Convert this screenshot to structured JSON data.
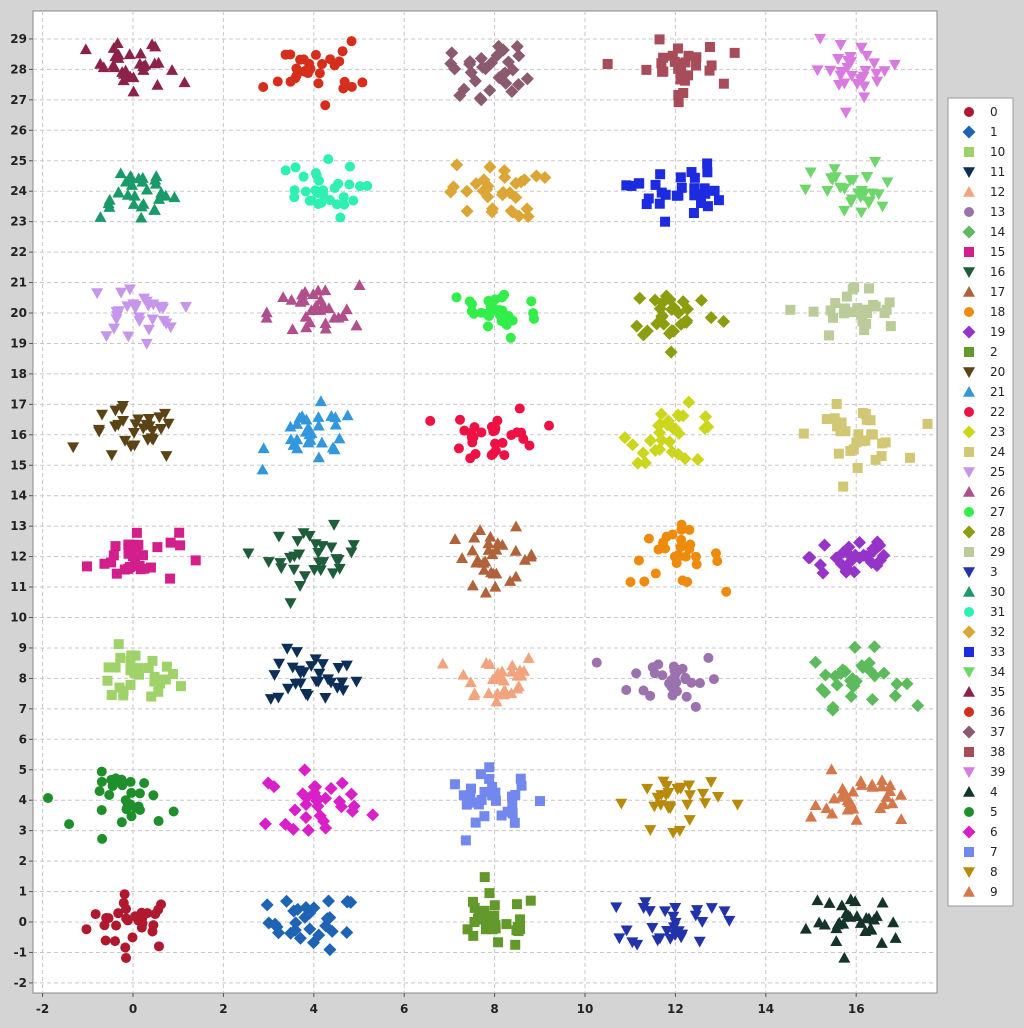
{
  "chart_data": {
    "type": "scatter",
    "title": "",
    "xlabel": "",
    "ylabel": "",
    "xlim": [
      -2.2,
      17.7
    ],
    "ylim": [
      -2.3,
      29.8
    ],
    "x_ticks": [
      -2,
      0,
      2,
      4,
      6,
      8,
      10,
      12,
      14,
      16
    ],
    "y_ticks": [
      -2,
      -1,
      0,
      1,
      2,
      3,
      4,
      5,
      6,
      7,
      8,
      9,
      10,
      11,
      12,
      13,
      14,
      15,
      16,
      17,
      18,
      19,
      20,
      21,
      22,
      23,
      24,
      25,
      26,
      27,
      28,
      29
    ],
    "grid": true,
    "legend_position": "right",
    "series": [
      {
        "name": "0",
        "center": [
          0,
          0
        ],
        "marker": "circle",
        "color": "#b0182e"
      },
      {
        "name": "1",
        "center": [
          4,
          0
        ],
        "marker": "diamond",
        "color": "#1f64b4"
      },
      {
        "name": "10",
        "center": [
          0,
          8
        ],
        "marker": "square",
        "color": "#9fd36a"
      },
      {
        "name": "11",
        "center": [
          4,
          8
        ],
        "marker": "triangle-down",
        "color": "#0d2e57"
      },
      {
        "name": "12",
        "center": [
          8,
          8
        ],
        "marker": "triangle-up",
        "color": "#f2a47f"
      },
      {
        "name": "13",
        "center": [
          12,
          8
        ],
        "marker": "circle",
        "color": "#9b72ad"
      },
      {
        "name": "14",
        "center": [
          16,
          8
        ],
        "marker": "diamond",
        "color": "#5dbb5d"
      },
      {
        "name": "15",
        "center": [
          0,
          12
        ],
        "marker": "square",
        "color": "#d21f8c"
      },
      {
        "name": "16",
        "center": [
          4,
          12
        ],
        "marker": "triangle-down",
        "color": "#1f5c3a"
      },
      {
        "name": "17",
        "center": [
          8,
          12
        ],
        "marker": "triangle-up",
        "color": "#b0623a"
      },
      {
        "name": "18",
        "center": [
          12,
          12
        ],
        "marker": "circle",
        "color": "#ee8b0c"
      },
      {
        "name": "19",
        "center": [
          16,
          12
        ],
        "marker": "diamond",
        "color": "#9633c8"
      },
      {
        "name": "2",
        "center": [
          8,
          0
        ],
        "marker": "square",
        "color": "#63992a"
      },
      {
        "name": "20",
        "center": [
          0,
          16
        ],
        "marker": "triangle-down",
        "color": "#5a4416"
      },
      {
        "name": "21",
        "center": [
          4,
          16
        ],
        "marker": "triangle-up",
        "color": "#3297dc"
      },
      {
        "name": "22",
        "center": [
          8,
          16
        ],
        "marker": "circle",
        "color": "#ee1144"
      },
      {
        "name": "23",
        "center": [
          12,
          16
        ],
        "marker": "diamond",
        "color": "#ccd61c"
      },
      {
        "name": "24",
        "center": [
          16,
          16
        ],
        "marker": "square",
        "color": "#d2c775"
      },
      {
        "name": "25",
        "center": [
          0,
          20
        ],
        "marker": "triangle-down",
        "color": "#c596ea"
      },
      {
        "name": "26",
        "center": [
          4,
          20
        ],
        "marker": "triangle-up",
        "color": "#b14f8c"
      },
      {
        "name": "27",
        "center": [
          8,
          20
        ],
        "marker": "circle",
        "color": "#33ee4a"
      },
      {
        "name": "28",
        "center": [
          12,
          20
        ],
        "marker": "diamond",
        "color": "#8c9e10"
      },
      {
        "name": "29",
        "center": [
          16,
          20
        ],
        "marker": "square",
        "color": "#bccb9a"
      },
      {
        "name": "3",
        "center": [
          12,
          0
        ],
        "marker": "triangle-down",
        "color": "#2233aa"
      },
      {
        "name": "30",
        "center": [
          0,
          24
        ],
        "marker": "triangle-up",
        "color": "#1a9a6a"
      },
      {
        "name": "31",
        "center": [
          4,
          24
        ],
        "marker": "circle",
        "color": "#2ef0b0"
      },
      {
        "name": "32",
        "center": [
          8,
          24
        ],
        "marker": "diamond",
        "color": "#dca636"
      },
      {
        "name": "33",
        "center": [
          12,
          24
        ],
        "marker": "square",
        "color": "#1d2be0"
      },
      {
        "name": "34",
        "center": [
          16,
          24
        ],
        "marker": "triangle-down",
        "color": "#6ed66a"
      },
      {
        "name": "35",
        "center": [
          0,
          28
        ],
        "marker": "triangle-up",
        "color": "#8c2248"
      },
      {
        "name": "36",
        "center": [
          4,
          28
        ],
        "marker": "circle",
        "color": "#d62e1c"
      },
      {
        "name": "37",
        "center": [
          8,
          28
        ],
        "marker": "diamond",
        "color": "#8c5a6e"
      },
      {
        "name": "38",
        "center": [
          12,
          28
        ],
        "marker": "square",
        "color": "#a84c5a"
      },
      {
        "name": "39",
        "center": [
          16,
          28
        ],
        "marker": "triangle-down",
        "color": "#d87ae0"
      },
      {
        "name": "4",
        "center": [
          16,
          0
        ],
        "marker": "triangle-up",
        "color": "#14332a"
      },
      {
        "name": "5",
        "center": [
          0,
          4
        ],
        "marker": "circle",
        "color": "#1f8f2c"
      },
      {
        "name": "6",
        "center": [
          4,
          4
        ],
        "marker": "diamond",
        "color": "#d91fc8"
      },
      {
        "name": "7",
        "center": [
          8,
          4
        ],
        "marker": "square",
        "color": "#7388ee"
      },
      {
        "name": "8",
        "center": [
          12,
          4
        ],
        "marker": "triangle-down",
        "color": "#b88a0c"
      },
      {
        "name": "9",
        "center": [
          16,
          4
        ],
        "marker": "triangle-up",
        "color": "#d4784c"
      }
    ]
  }
}
